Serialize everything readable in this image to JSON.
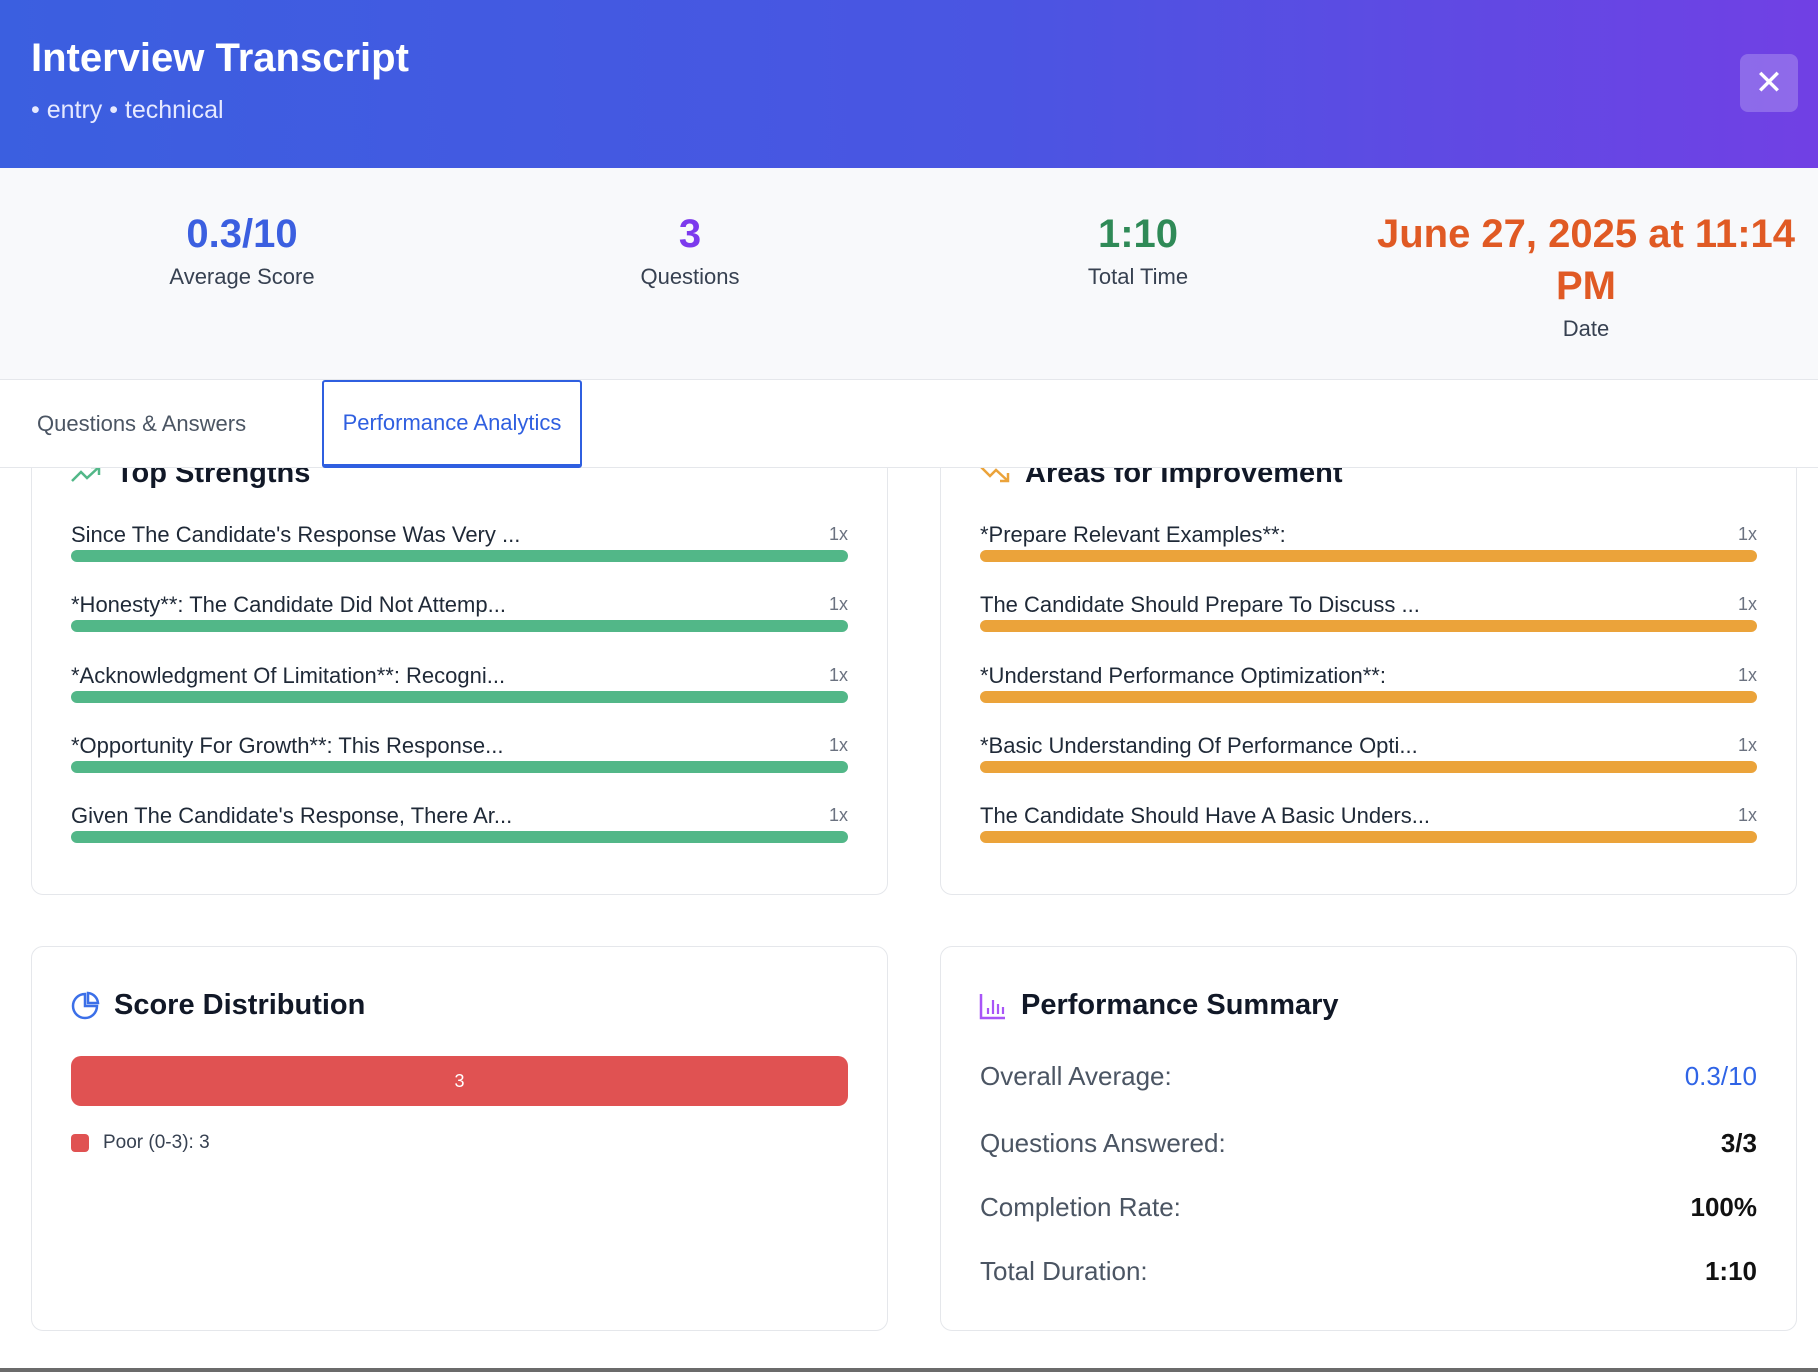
{
  "header": {
    "title": "Interview Transcript",
    "subtitle": "• entry • technical",
    "close_icon": "close-icon"
  },
  "stats": [
    {
      "value": "0.3/10",
      "label": "Average Score",
      "color": "#3b5fe0"
    },
    {
      "value": "3",
      "label": "Questions",
      "color": "#7c3aed"
    },
    {
      "value": "1:10",
      "label": "Total Time",
      "color": "#2f8a57"
    },
    {
      "value": "June 27, 2025 at 11:14 PM",
      "label": "Date",
      "color": "#e05a24"
    }
  ],
  "tabs": [
    {
      "label": "Questions & Answers",
      "active": false
    },
    {
      "label": "Performance Analytics",
      "active": true
    }
  ],
  "strengths": {
    "title": "Top Strengths",
    "icon": "trending-up-icon",
    "color": "#52b788",
    "items": [
      {
        "label": "Since The Candidate's Response Was Very ...",
        "count": "1x"
      },
      {
        "label": "*Honesty**: The Candidate Did Not Attemp...",
        "count": "1x"
      },
      {
        "label": "*Acknowledgment Of Limitation**: Recogni...",
        "count": "1x"
      },
      {
        "label": "*Opportunity For Growth**: This Response...",
        "count": "1x"
      },
      {
        "label": "Given The Candidate's Response, There Ar...",
        "count": "1x"
      }
    ]
  },
  "improvements": {
    "title": "Areas for Improvement",
    "icon": "trending-down-icon",
    "color": "#eba33a",
    "items": [
      {
        "label": "*Prepare Relevant Examples**:",
        "count": "1x"
      },
      {
        "label": "The Candidate Should Prepare To Discuss ...",
        "count": "1x"
      },
      {
        "label": "*Understand Performance Optimization**:",
        "count": "1x"
      },
      {
        "label": "*Basic Understanding Of Performance Opti...",
        "count": "1x"
      },
      {
        "label": "The Candidate Should Have A Basic Unders...",
        "count": "1x"
      }
    ]
  },
  "distribution": {
    "title": "Score Distribution",
    "icon": "pie-chart-icon",
    "bar_value": "3",
    "legend": "Poor (0-3): 3",
    "color": "#e05252"
  },
  "summary": {
    "title": "Performance Summary",
    "icon": "bar-chart-icon",
    "rows": [
      {
        "label": "Overall Average:",
        "value": "0.3/10"
      },
      {
        "label": "Questions Answered:",
        "value": "3/3"
      },
      {
        "label": "Completion Rate:",
        "value": "100%"
      },
      {
        "label": "Total Duration:",
        "value": "1:10"
      }
    ]
  }
}
